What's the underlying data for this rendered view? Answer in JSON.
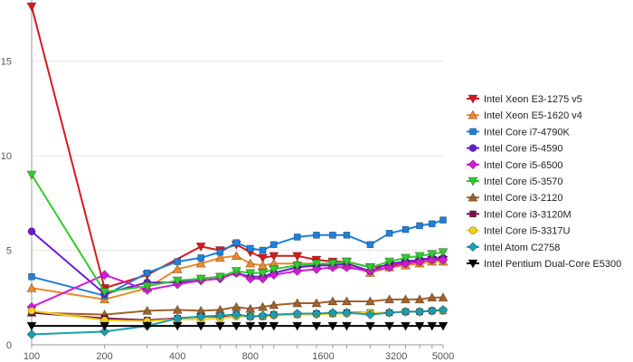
{
  "chart_data": {
    "type": "line",
    "title": "",
    "xlabel": "",
    "ylabel": "",
    "x_scale": "log",
    "x": [
      100,
      200,
      300,
      400,
      500,
      600,
      700,
      800,
      900,
      1000,
      1250,
      1500,
      1750,
      2000,
      2500,
      3000,
      3500,
      4000,
      4500,
      5000
    ],
    "x_ticks": [
      100,
      200,
      400,
      800,
      1600,
      3200,
      5000
    ],
    "ylim": [
      0,
      18
    ],
    "y_ticks": [
      0,
      5,
      10,
      15
    ],
    "grid": "horizontal",
    "legend_position": "right",
    "series": [
      {
        "name": "Intel Xeon E3-1275 v5",
        "color": "#d7191c",
        "marker": "triangle-down",
        "values": [
          17.9,
          3.0,
          3.7,
          null,
          5.2,
          5.0,
          5.3,
          4.9,
          4.6,
          4.7,
          4.7,
          4.5,
          4.4,
          4.4,
          4.1,
          4.2,
          4.3,
          4.4,
          4.5,
          4.5
        ]
      },
      {
        "name": "Intel Xeon E5-1620 v4",
        "color": "#e88a2e",
        "marker": "triangle-up",
        "values": [
          3.0,
          2.4,
          3.0,
          4.0,
          4.3,
          4.6,
          4.7,
          4.3,
          4.2,
          4.3,
          4.3,
          4.3,
          4.2,
          4.2,
          3.8,
          4.1,
          4.2,
          4.3,
          4.4,
          4.4
        ]
      },
      {
        "name": "Intel Core i7-4790K",
        "color": "#1f7fdb",
        "marker": "square",
        "values": [
          3.6,
          2.6,
          3.8,
          4.4,
          4.6,
          4.9,
          5.4,
          5.1,
          5.0,
          5.3,
          5.7,
          5.8,
          5.8,
          5.8,
          5.3,
          5.9,
          6.1,
          6.3,
          6.4,
          6.6
        ]
      },
      {
        "name": "Intel Core i5-4590",
        "color": "#6a1bd1",
        "marker": "circle",
        "values": [
          6.0,
          2.7,
          3.3,
          3.3,
          3.5,
          3.6,
          3.8,
          3.6,
          3.6,
          3.8,
          4.1,
          4.2,
          4.2,
          4.3,
          3.9,
          4.3,
          4.4,
          4.5,
          4.6,
          4.6
        ]
      },
      {
        "name": "Intel Core i5-6500",
        "color": "#d61ad6",
        "marker": "diamond",
        "values": [
          2.0,
          3.7,
          2.9,
          3.2,
          3.4,
          3.5,
          3.8,
          3.5,
          3.5,
          3.7,
          3.9,
          4.0,
          4.1,
          4.1,
          3.9,
          4.1,
          4.3,
          4.4,
          4.5,
          4.5
        ]
      },
      {
        "name": "Intel Core i5-3570",
        "color": "#2ecc2e",
        "marker": "triangle-down",
        "values": [
          9.0,
          2.8,
          3.1,
          3.4,
          3.5,
          3.6,
          3.9,
          3.8,
          3.8,
          4.0,
          4.2,
          4.3,
          4.3,
          4.4,
          4.1,
          4.4,
          4.6,
          4.7,
          4.8,
          4.9
        ]
      },
      {
        "name": "Intel Core i3-2120",
        "color": "#a0612c",
        "marker": "triangle-up",
        "values": [
          1.7,
          1.6,
          1.8,
          1.85,
          1.8,
          1.85,
          2.0,
          1.9,
          2.0,
          2.1,
          2.2,
          2.2,
          2.3,
          2.3,
          2.3,
          2.4,
          2.4,
          2.4,
          2.5,
          2.5
        ]
      },
      {
        "name": "Intel Core i3-3120M",
        "color": "#7a0f4f",
        "marker": "square",
        "values": [
          1.7,
          1.4,
          1.3,
          1.4,
          1.5,
          1.5,
          1.6,
          1.5,
          1.5,
          1.6,
          1.6,
          1.65,
          1.65,
          1.7,
          1.7,
          1.7,
          1.75,
          1.75,
          1.8,
          1.8
        ]
      },
      {
        "name": "Intel Core i5-3317U",
        "color": "#f2d21b",
        "marker": "circle",
        "values": [
          1.8,
          1.3,
          1.25,
          1.35,
          1.35,
          1.4,
          1.5,
          1.5,
          1.5,
          1.55,
          1.6,
          1.6,
          1.65,
          1.65,
          1.7,
          1.7,
          1.75,
          1.75,
          1.8,
          1.8
        ]
      },
      {
        "name": "Intel Atom C2758",
        "color": "#1b9faf",
        "marker": "diamond",
        "values": [
          0.55,
          0.7,
          1.0,
          1.4,
          1.5,
          1.55,
          1.6,
          1.5,
          1.55,
          1.6,
          1.65,
          1.65,
          1.7,
          1.7,
          1.6,
          1.7,
          1.75,
          1.75,
          1.8,
          1.85
        ]
      },
      {
        "name": "Intel Pentium Dual-Core E5300",
        "color": "#000000",
        "marker": "triangle-down",
        "values": [
          1.0,
          1.0,
          1.0,
          1.0,
          1.0,
          1.0,
          1.0,
          1.0,
          1.0,
          1.0,
          1.0,
          1.0,
          1.0,
          1.0,
          1.0,
          1.0,
          1.0,
          1.0,
          1.0,
          1.0
        ]
      }
    ]
  }
}
